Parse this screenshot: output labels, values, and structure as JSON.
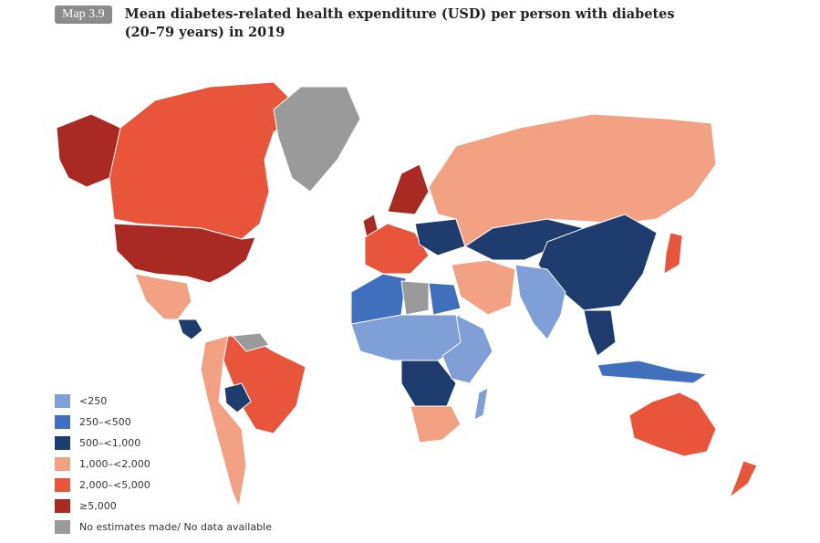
{
  "header": {
    "badge": "Map 3.9",
    "title": "Mean diabetes-related health expenditure (USD) per person with diabetes (20–79 years) in 2019"
  },
  "colors": {
    "lt250": "#7f9fd6",
    "250to500": "#3f6fbd",
    "500to1000": "#1f3c6e",
    "1000to2000": "#f2a283",
    "2000to5000": "#e8553a",
    "gte5000": "#a82a22",
    "nodata": "#9a9a9a"
  },
  "legend": [
    {
      "label": "<250",
      "color_key": "lt250"
    },
    {
      "label": "250–<500",
      "color_key": "250to500"
    },
    {
      "label": "500–<1,000",
      "color_key": "500to1000"
    },
    {
      "label": "1,000–<2,000",
      "color_key": "1000to2000"
    },
    {
      "label": "2,000–<5,000",
      "color_key": "2000to5000"
    },
    {
      "label": "≥5,000",
      "color_key": "gte5000"
    },
    {
      "label": "No estimates made/ No data available",
      "color_key": "nodata"
    }
  ],
  "regions": [
    {
      "name": "alaska",
      "category": "gte5000"
    },
    {
      "name": "canada",
      "category": "2000to5000"
    },
    {
      "name": "usa",
      "category": "gte5000"
    },
    {
      "name": "greenland",
      "category": "nodata"
    },
    {
      "name": "mexico",
      "category": "1000to2000"
    },
    {
      "name": "central-america",
      "category": "500to1000"
    },
    {
      "name": "south-america-west",
      "category": "1000to2000"
    },
    {
      "name": "brazil",
      "category": "2000to5000"
    },
    {
      "name": "bolivia",
      "category": "500to1000"
    },
    {
      "name": "guianas",
      "category": "nodata"
    },
    {
      "name": "uk",
      "category": "gte5000"
    },
    {
      "name": "western-europe",
      "category": "2000to5000"
    },
    {
      "name": "scandinavia",
      "category": "gte5000"
    },
    {
      "name": "eastern-europe",
      "category": "500to1000"
    },
    {
      "name": "russia",
      "category": "1000to2000"
    },
    {
      "name": "kazakhstan-mongolia",
      "category": "500to1000"
    },
    {
      "name": "china",
      "category": "500to1000"
    },
    {
      "name": "japan",
      "category": "2000to5000"
    },
    {
      "name": "india",
      "category": "lt250"
    },
    {
      "name": "middle-east",
      "category": "1000to2000"
    },
    {
      "name": "north-africa-west",
      "category": "250to500"
    },
    {
      "name": "libya",
      "category": "nodata"
    },
    {
      "name": "egypt",
      "category": "250to500"
    },
    {
      "name": "sahel",
      "category": "lt250"
    },
    {
      "name": "central-africa",
      "category": "500to1000"
    },
    {
      "name": "east-africa",
      "category": "lt250"
    },
    {
      "name": "southern-africa",
      "category": "1000to2000"
    },
    {
      "name": "madagascar",
      "category": "lt250"
    },
    {
      "name": "southeast-asia",
      "category": "500to1000"
    },
    {
      "name": "indonesia",
      "category": "250to500"
    },
    {
      "name": "australia",
      "category": "2000to5000"
    },
    {
      "name": "new-zealand",
      "category": "2000to5000"
    }
  ]
}
